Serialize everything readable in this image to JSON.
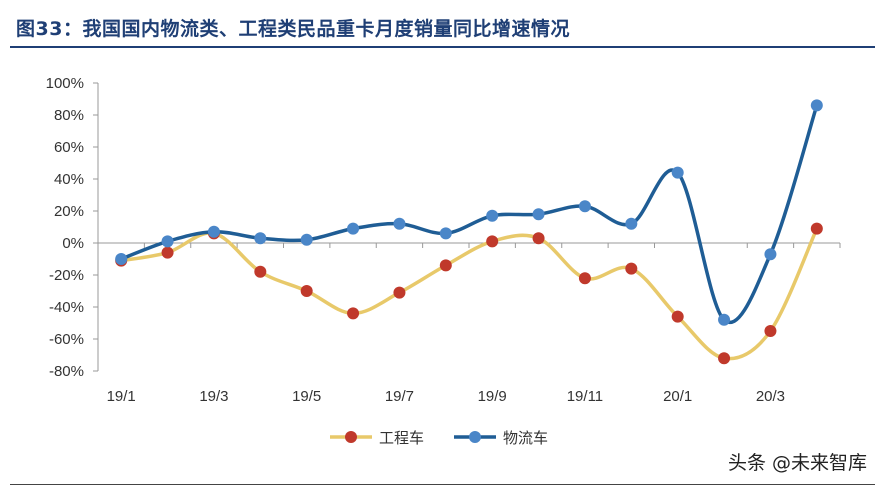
{
  "title": "图33：我国国内物流类、工程类民品重卡月度销量同比增速情况",
  "watermark": "头条 @未来智库",
  "chart_data": {
    "type": "line",
    "categories": [
      "19/1",
      "19/2",
      "19/3",
      "19/4",
      "19/5",
      "19/6",
      "19/7",
      "19/8",
      "19/9",
      "19/10",
      "19/11",
      "19/12",
      "20/1",
      "20/2",
      "20/3",
      "20/4"
    ],
    "x_tick_labels": [
      "19/1",
      "19/3",
      "19/5",
      "19/7",
      "19/9",
      "19/11",
      "20/1",
      "20/3"
    ],
    "y_ticks": [
      "100%",
      "80%",
      "60%",
      "40%",
      "20%",
      "0%",
      "-20%",
      "-40%",
      "-60%",
      "-80%"
    ],
    "ylim": [
      -80,
      100
    ],
    "y_unit": "%",
    "legend_position": "bottom",
    "series": [
      {
        "name": "工程车",
        "color": "#e8c96a",
        "marker_color": "#c0392b",
        "values": [
          -11,
          -6,
          6,
          -18,
          -30,
          -44,
          -31,
          -14,
          1,
          3,
          -22,
          -16,
          -46,
          -72,
          -55,
          9
        ]
      },
      {
        "name": "物流车",
        "color": "#1f5d95",
        "marker_color": "#4a86c8",
        "values": [
          -10,
          1,
          7,
          3,
          2,
          9,
          12,
          6,
          17,
          18,
          23,
          12,
          44,
          -48,
          -7,
          86
        ]
      }
    ]
  }
}
